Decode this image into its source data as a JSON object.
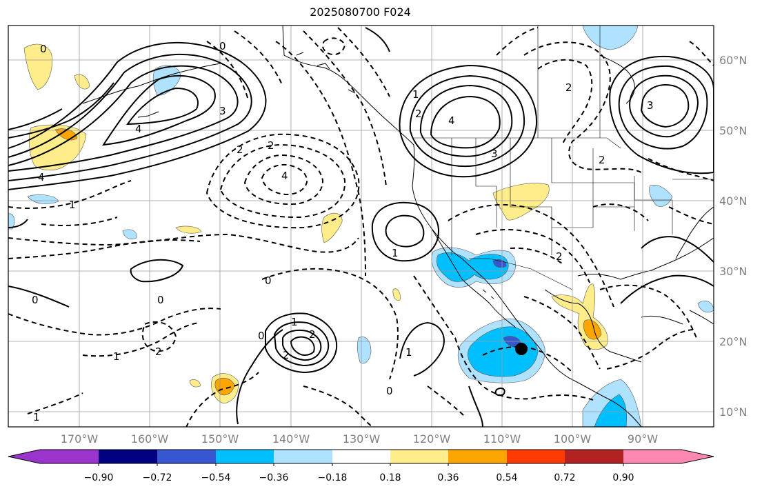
{
  "title": "2025080700 F024",
  "map": {
    "lon_ticks": [
      "170°W",
      "160°W",
      "150°W",
      "140°W",
      "130°W",
      "120°W",
      "110°W",
      "100°W",
      "90°W"
    ],
    "lat_ticks": [
      "60°N",
      "50°N",
      "40°N",
      "30°N",
      "20°N",
      "10°N"
    ],
    "grid": true,
    "marker": "storm-center-dot"
  },
  "colorbar": {
    "labels": [
      "−0.90",
      "−0.72",
      "−0.54",
      "−0.36",
      "−0.18",
      "0.18",
      "0.36",
      "0.54",
      "0.72",
      "0.90"
    ],
    "colors": [
      "#9a34cc",
      "#000080",
      "#3657cf",
      "#00bfff",
      "#afe2ff",
      "#ffffff",
      "#ffec8b",
      "#ffa500",
      "#ff3a00",
      "#b22222",
      "#ff88b2"
    ],
    "extend": "both"
  },
  "contour_labels": [
    "4",
    "3",
    "2",
    "1",
    "0",
    "0",
    "1",
    "2",
    "3",
    "4",
    "4",
    "2",
    "1",
    "0",
    "2",
    "2",
    "2",
    "1",
    "0",
    "0",
    "1",
    "2",
    "2",
    "1",
    "4",
    "0",
    "1",
    "3",
    "2",
    "0"
  ],
  "shading_colors": {
    "blue_dark": "#00bfff",
    "blue_light": "#afe2ff",
    "navy": "#3657cf",
    "yellow": "#ffec8b",
    "orange": "#ffa500"
  }
}
